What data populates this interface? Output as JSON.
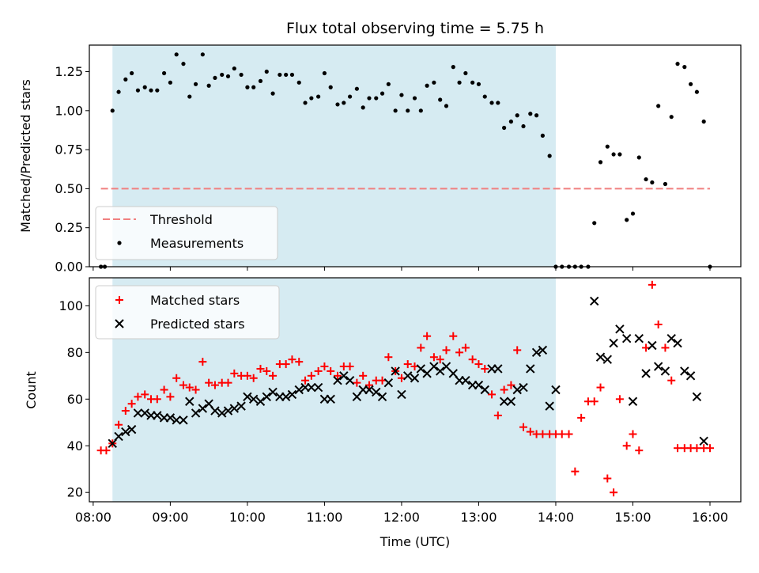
{
  "chart_data": [
    {
      "type": "scatter",
      "title": "Flux total observing time = 5.75 h",
      "xlabel": "",
      "ylabel": "Matched/Predicted stars",
      "xlim": [
        7.95,
        16.4
      ],
      "ylim": [
        0,
        1.42
      ],
      "yticks": [
        0.0,
        0.25,
        0.5,
        0.75,
        1.0,
        1.25
      ],
      "ytick_labels": [
        "0.00",
        "0.25",
        "0.50",
        "0.75",
        "1.00",
        "1.25"
      ],
      "shaded_span": [
        8.25,
        14.0
      ],
      "threshold": {
        "name": "Threshold",
        "value": 0.5,
        "x": [
          8.1,
          16.0
        ],
        "color": "#f08080"
      },
      "legend": {
        "position": "lower-left",
        "entries": [
          "Threshold",
          "Measurements"
        ]
      },
      "series": [
        {
          "name": "Measurements",
          "color": "#000000",
          "marker": "dot",
          "x": [
            8.1,
            8.15,
            8.25,
            8.33,
            8.42,
            8.5,
            8.58,
            8.67,
            8.75,
            8.83,
            8.92,
            9.0,
            9.08,
            9.17,
            9.25,
            9.33,
            9.42,
            9.5,
            9.58,
            9.67,
            9.75,
            9.83,
            9.92,
            10.0,
            10.08,
            10.17,
            10.25,
            10.33,
            10.42,
            10.5,
            10.58,
            10.67,
            10.75,
            10.83,
            10.92,
            11.0,
            11.08,
            11.17,
            11.25,
            11.33,
            11.42,
            11.5,
            11.58,
            11.67,
            11.75,
            11.83,
            11.92,
            12.0,
            12.08,
            12.17,
            12.25,
            12.33,
            12.42,
            12.5,
            12.58,
            12.67,
            12.75,
            12.83,
            12.92,
            13.0,
            13.08,
            13.17,
            13.25,
            13.33,
            13.42,
            13.5,
            13.58,
            13.67,
            13.75,
            13.83,
            13.92,
            14.0,
            14.08,
            14.17,
            14.25,
            14.33,
            14.42,
            14.5,
            14.58,
            14.67,
            14.75,
            14.83,
            14.92,
            15.0,
            15.08,
            15.17,
            15.25,
            15.33,
            15.42,
            15.5,
            15.58,
            15.67,
            15.75,
            15.83,
            15.92,
            16.0
          ],
          "y": [
            0.0,
            0.0,
            1.0,
            1.12,
            1.2,
            1.24,
            1.13,
            1.15,
            1.13,
            1.13,
            1.24,
            1.18,
            1.36,
            1.3,
            1.09,
            1.17,
            1.36,
            1.16,
            1.21,
            1.23,
            1.22,
            1.27,
            1.23,
            1.15,
            1.15,
            1.19,
            1.25,
            1.11,
            1.23,
            1.23,
            1.23,
            1.18,
            1.05,
            1.08,
            1.09,
            1.24,
            1.15,
            1.04,
            1.05,
            1.09,
            1.14,
            1.02,
            1.08,
            1.08,
            1.11,
            1.17,
            1.0,
            1.1,
            1.0,
            1.08,
            1.0,
            1.16,
            1.18,
            1.07,
            1.03,
            1.28,
            1.18,
            1.24,
            1.18,
            1.17,
            1.09,
            1.05,
            1.05,
            0.89,
            0.93,
            0.97,
            0.9,
            0.98,
            0.97,
            0.84,
            0.71,
            0.0,
            0.0,
            0.0,
            0.0,
            0.0,
            0.0,
            0.28,
            0.67,
            0.77,
            0.72,
            0.72,
            0.3,
            0.34,
            0.7,
            0.56,
            0.54,
            1.03,
            0.53,
            0.96,
            1.3,
            1.28,
            1.17,
            1.12,
            0.93,
            0.0
          ]
        }
      ]
    },
    {
      "type": "scatter",
      "title": "",
      "xlabel": "Time (UTC)",
      "ylabel": "Count",
      "xlim": [
        7.95,
        16.4
      ],
      "ylim": [
        16,
        112
      ],
      "xticks": [
        8,
        9,
        10,
        11,
        12,
        13,
        14,
        15,
        16
      ],
      "xtick_labels": [
        "08:00",
        "09:00",
        "10:00",
        "11:00",
        "12:00",
        "13:00",
        "14:00",
        "15:00",
        "16:00"
      ],
      "yticks": [
        20,
        40,
        60,
        80,
        100
      ],
      "ytick_labels": [
        "20",
        "40",
        "60",
        "80",
        "100"
      ],
      "shaded_span": [
        8.25,
        14.0
      ],
      "legend": {
        "position": "upper-left",
        "entries": [
          "Matched stars",
          "Predicted stars"
        ]
      },
      "series": [
        {
          "name": "Matched stars",
          "color": "#ff0000",
          "marker": "plus",
          "x": [
            8.1,
            8.17,
            8.25,
            8.33,
            8.42,
            8.5,
            8.58,
            8.67,
            8.75,
            8.83,
            8.92,
            9.0,
            9.08,
            9.17,
            9.25,
            9.33,
            9.42,
            9.5,
            9.58,
            9.67,
            9.75,
            9.83,
            9.92,
            10.0,
            10.08,
            10.17,
            10.25,
            10.33,
            10.42,
            10.5,
            10.58,
            10.67,
            10.75,
            10.83,
            10.92,
            11.0,
            11.08,
            11.17,
            11.25,
            11.33,
            11.42,
            11.5,
            11.58,
            11.67,
            11.75,
            11.83,
            11.92,
            12.0,
            12.08,
            12.17,
            12.25,
            12.33,
            12.42,
            12.5,
            12.58,
            12.67,
            12.75,
            12.83,
            12.92,
            13.0,
            13.08,
            13.17,
            13.25,
            13.33,
            13.42,
            13.5,
            13.58,
            13.67,
            13.75,
            13.83,
            13.92,
            14.0,
            14.08,
            14.17,
            14.25,
            14.33,
            14.42,
            14.5,
            14.58,
            14.67,
            14.75,
            14.83,
            14.92,
            15.0,
            15.08,
            15.17,
            15.25,
            15.33,
            15.42,
            15.5,
            15.58,
            15.67,
            15.75,
            15.83,
            15.92,
            16.0
          ],
          "y": [
            38,
            38,
            41,
            49,
            55,
            58,
            61,
            62,
            60,
            60,
            64,
            61,
            69,
            66,
            65,
            64,
            76,
            67,
            66,
            67,
            67,
            71,
            70,
            70,
            69,
            73,
            72,
            70,
            75,
            75,
            77,
            76,
            68,
            70,
            72,
            74,
            72,
            70,
            74,
            74,
            67,
            70,
            66,
            68,
            68,
            78,
            72,
            69,
            75,
            74,
            82,
            87,
            78,
            77,
            81,
            87,
            80,
            82,
            77,
            75,
            73,
            62,
            53,
            64,
            66,
            81,
            48,
            46,
            45,
            45,
            45,
            45,
            45,
            45,
            29,
            52,
            59,
            59,
            65,
            26,
            20,
            60,
            40,
            45,
            38,
            82,
            109,
            92,
            82,
            68,
            39,
            39,
            39,
            39,
            39,
            39
          ],
          "note": "x/y of this series align with x list below only approximately"
        },
        {
          "name": "Predicted stars",
          "color": "#000000",
          "marker": "x",
          "x": [
            8.25,
            8.33,
            8.42,
            8.5,
            8.58,
            8.67,
            8.75,
            8.83,
            8.92,
            9.0,
            9.08,
            9.17,
            9.25,
            9.33,
            9.42,
            9.5,
            9.58,
            9.67,
            9.75,
            9.83,
            9.92,
            10.0,
            10.08,
            10.17,
            10.25,
            10.33,
            10.42,
            10.5,
            10.58,
            10.67,
            10.75,
            10.83,
            10.92,
            11.0,
            11.08,
            11.17,
            11.25,
            11.33,
            11.42,
            11.5,
            11.58,
            11.67,
            11.75,
            11.83,
            11.92,
            12.0,
            12.08,
            12.17,
            12.25,
            12.33,
            12.42,
            12.5,
            12.58,
            12.67,
            12.75,
            12.83,
            12.92,
            13.0,
            13.08,
            13.17,
            13.25,
            13.33,
            13.42,
            13.5,
            13.58,
            13.67,
            13.75,
            13.83,
            13.92,
            14.0,
            14.5,
            14.58,
            14.67,
            14.75,
            14.83,
            14.92,
            15.0,
            15.08,
            15.17,
            15.25,
            15.33,
            15.42,
            15.5,
            15.58,
            15.67,
            15.75,
            15.83,
            15.92
          ],
          "y": [
            41,
            44,
            46,
            47,
            54,
            54,
            53,
            53,
            52,
            52,
            51,
            51,
            59,
            54,
            56,
            58,
            55,
            54,
            55,
            56,
            57,
            61,
            60,
            59,
            61,
            63,
            61,
            61,
            62,
            64,
            65,
            65,
            65,
            60,
            60,
            68,
            70,
            68,
            61,
            64,
            64,
            63,
            61,
            67,
            72,
            62,
            70,
            69,
            73,
            71,
            74,
            72,
            74,
            71,
            68,
            68,
            66,
            66,
            64,
            73,
            73,
            59,
            59,
            64,
            65,
            73,
            80,
            81,
            57,
            64,
            102,
            78,
            77,
            84,
            90,
            86,
            59,
            86,
            71,
            83,
            74,
            72,
            86,
            84,
            72,
            70,
            61,
            42
          ]
        }
      ]
    }
  ]
}
